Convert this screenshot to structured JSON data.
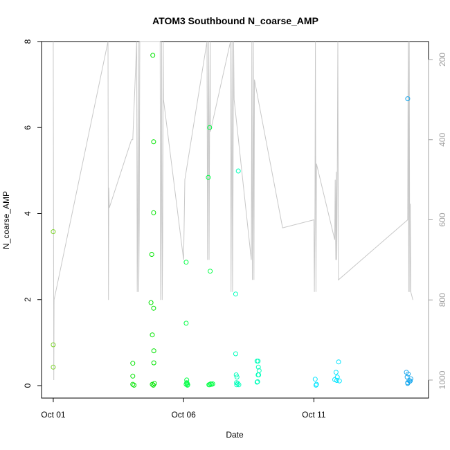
{
  "chart_data": {
    "type": "scatter",
    "title": "ATOM3 Southbound N_coarse_AMP",
    "xlabel": "Date",
    "ylabel": "N_coarse_AMP",
    "x_ticks": [
      {
        "label": "Oct 01",
        "day": 1
      },
      {
        "label": "Oct 06",
        "day": 6
      },
      {
        "label": "Oct 11",
        "day": 11
      }
    ],
    "xlim_days": [
      0.55,
      15.4
    ],
    "ylim": [
      0,
      8
    ],
    "y_ticks": [
      0,
      2,
      4,
      6,
      8
    ],
    "right_axis": {
      "label": "",
      "reversed": true,
      "lim": [
        1045,
        155
      ],
      "ticks": [
        200,
        400,
        600,
        800,
        1000
      ],
      "color": "#a0a0a0",
      "series_name": "",
      "line_color": "#c8c8c8",
      "line": [
        [
          1.0,
          155
        ],
        [
          1.02,
          1000
        ],
        [
          1.03,
          800
        ],
        [
          3.1,
          155
        ],
        [
          3.12,
          800
        ],
        [
          3.13,
          520
        ],
        [
          3.15,
          570
        ],
        [
          4.0,
          400
        ],
        [
          4.05,
          400
        ],
        [
          4.2,
          155
        ],
        [
          4.22,
          780
        ],
        [
          4.24,
          600
        ],
        [
          4.26,
          155
        ],
        [
          4.28,
          780
        ],
        [
          4.3,
          600
        ],
        [
          4.32,
          155
        ],
        [
          5.1,
          155
        ],
        [
          5.12,
          800
        ],
        [
          5.14,
          600
        ],
        [
          5.16,
          155
        ],
        [
          5.18,
          800
        ],
        [
          5.2,
          650
        ],
        [
          5.22,
          155
        ],
        [
          5.23,
          300
        ],
        [
          6.0,
          700
        ],
        [
          6.05,
          500
        ],
        [
          6.9,
          155
        ],
        [
          6.92,
          700
        ],
        [
          6.94,
          400
        ],
        [
          6.96,
          155
        ],
        [
          6.98,
          700
        ],
        [
          7.0,
          350
        ],
        [
          7.02,
          155
        ],
        [
          7.03,
          380
        ],
        [
          7.8,
          155
        ],
        [
          7.82,
          780
        ],
        [
          7.84,
          500
        ],
        [
          7.86,
          155
        ],
        [
          7.88,
          780
        ],
        [
          7.9,
          500
        ],
        [
          7.92,
          155
        ],
        [
          7.94,
          300
        ],
        [
          8.6,
          700
        ],
        [
          8.62,
          155
        ],
        [
          8.64,
          750
        ],
        [
          8.66,
          550
        ],
        [
          8.68,
          155
        ],
        [
          8.7,
          750
        ],
        [
          8.72,
          250
        ],
        [
          9.8,
          620
        ],
        [
          11.0,
          600
        ],
        [
          11.02,
          780
        ],
        [
          11.04,
          600
        ],
        [
          11.06,
          155
        ],
        [
          11.08,
          780
        ],
        [
          11.1,
          460
        ],
        [
          11.8,
          650
        ],
        [
          11.82,
          500
        ],
        [
          11.84,
          700
        ],
        [
          11.86,
          480
        ],
        [
          11.88,
          700
        ],
        [
          11.9,
          480
        ],
        [
          11.92,
          155
        ],
        [
          11.94,
          750
        ],
        [
          14.6,
          600
        ],
        [
          14.62,
          155
        ],
        [
          14.64,
          780
        ],
        [
          14.66,
          155
        ],
        [
          14.68,
          780
        ],
        [
          14.7,
          560
        ],
        [
          14.72,
          780
        ],
        [
          14.8,
          800
        ]
      ]
    },
    "points": [
      {
        "x": 1.0,
        "y": 3.58
      },
      {
        "x": 1.0,
        "y": 0.95
      },
      {
        "x": 1.0,
        "y": 0.43
      },
      {
        "x": 4.05,
        "y": 0.52
      },
      {
        "x": 4.05,
        "y": 0.22
      },
      {
        "x": 4.05,
        "y": 0.03
      },
      {
        "x": 4.1,
        "y": 0.01
      },
      {
        "x": 4.75,
        "y": 1.93
      },
      {
        "x": 4.78,
        "y": 3.05
      },
      {
        "x": 4.8,
        "y": 1.18
      },
      {
        "x": 4.8,
        "y": 0.03
      },
      {
        "x": 4.82,
        "y": 7.68
      },
      {
        "x": 4.85,
        "y": 5.67
      },
      {
        "x": 4.85,
        "y": 4.02
      },
      {
        "x": 4.85,
        "y": 1.8
      },
      {
        "x": 4.86,
        "y": 0.81
      },
      {
        "x": 4.86,
        "y": 0.53
      },
      {
        "x": 4.88,
        "y": 0.05
      },
      {
        "x": 4.84,
        "y": 0.01
      },
      {
        "x": 6.1,
        "y": 2.87
      },
      {
        "x": 6.1,
        "y": 1.45
      },
      {
        "x": 6.12,
        "y": 0.13
      },
      {
        "x": 6.12,
        "y": 0.07
      },
      {
        "x": 6.14,
        "y": 0.05
      },
      {
        "x": 6.1,
        "y": 0.03
      },
      {
        "x": 6.16,
        "y": 0.02
      },
      {
        "x": 6.15,
        "y": 0.01
      },
      {
        "x": 6.95,
        "y": 4.84
      },
      {
        "x": 6.97,
        "y": 0.02
      },
      {
        "x": 7.0,
        "y": 6.0
      },
      {
        "x": 7.02,
        "y": 2.66
      },
      {
        "x": 7.04,
        "y": 0.04
      },
      {
        "x": 7.08,
        "y": 0.03
      },
      {
        "x": 7.0,
        "y": 0.02
      },
      {
        "x": 7.12,
        "y": 0.04
      },
      {
        "x": 8.0,
        "y": 2.13
      },
      {
        "x": 8.0,
        "y": 0.74
      },
      {
        "x": 8.02,
        "y": 0.25
      },
      {
        "x": 8.05,
        "y": 0.2
      },
      {
        "x": 8.03,
        "y": 0.07
      },
      {
        "x": 8.08,
        "y": 0.05
      },
      {
        "x": 8.12,
        "y": 0.02
      },
      {
        "x": 8.1,
        "y": 4.99
      },
      {
        "x": 8.04,
        "y": 0.02
      },
      {
        "x": 8.82,
        "y": 0.57
      },
      {
        "x": 8.82,
        "y": 0.08
      },
      {
        "x": 8.86,
        "y": 0.25
      },
      {
        "x": 8.87,
        "y": 0.43
      },
      {
        "x": 8.9,
        "y": 0.35
      },
      {
        "x": 8.88,
        "y": 0.25
      },
      {
        "x": 8.84,
        "y": 0.09
      },
      {
        "x": 8.86,
        "y": 0.57
      },
      {
        "x": 11.05,
        "y": 0.15
      },
      {
        "x": 11.1,
        "y": 0.03
      },
      {
        "x": 11.08,
        "y": 0.01
      },
      {
        "x": 11.8,
        "y": 0.14
      },
      {
        "x": 11.85,
        "y": 0.31
      },
      {
        "x": 11.88,
        "y": 0.12
      },
      {
        "x": 11.9,
        "y": 0.2
      },
      {
        "x": 11.95,
        "y": 0.55
      },
      {
        "x": 11.98,
        "y": 0.11
      },
      {
        "x": 14.55,
        "y": 0.31
      },
      {
        "x": 14.6,
        "y": 6.67
      },
      {
        "x": 14.58,
        "y": 0.2
      },
      {
        "x": 14.6,
        "y": 0.07
      },
      {
        "x": 14.62,
        "y": 0.27
      },
      {
        "x": 14.65,
        "y": 0.12
      },
      {
        "x": 14.7,
        "y": 0.11
      },
      {
        "x": 14.68,
        "y": 0.1
      },
      {
        "x": 14.72,
        "y": 0.16
      },
      {
        "x": 14.6,
        "y": 0.05
      }
    ],
    "color_scale": [
      "#7bd329",
      "#00e400",
      "#00ff44",
      "#00ffbb",
      "#00e5ff",
      "#1aa8ee"
    ],
    "grid": false,
    "legend": "none"
  }
}
